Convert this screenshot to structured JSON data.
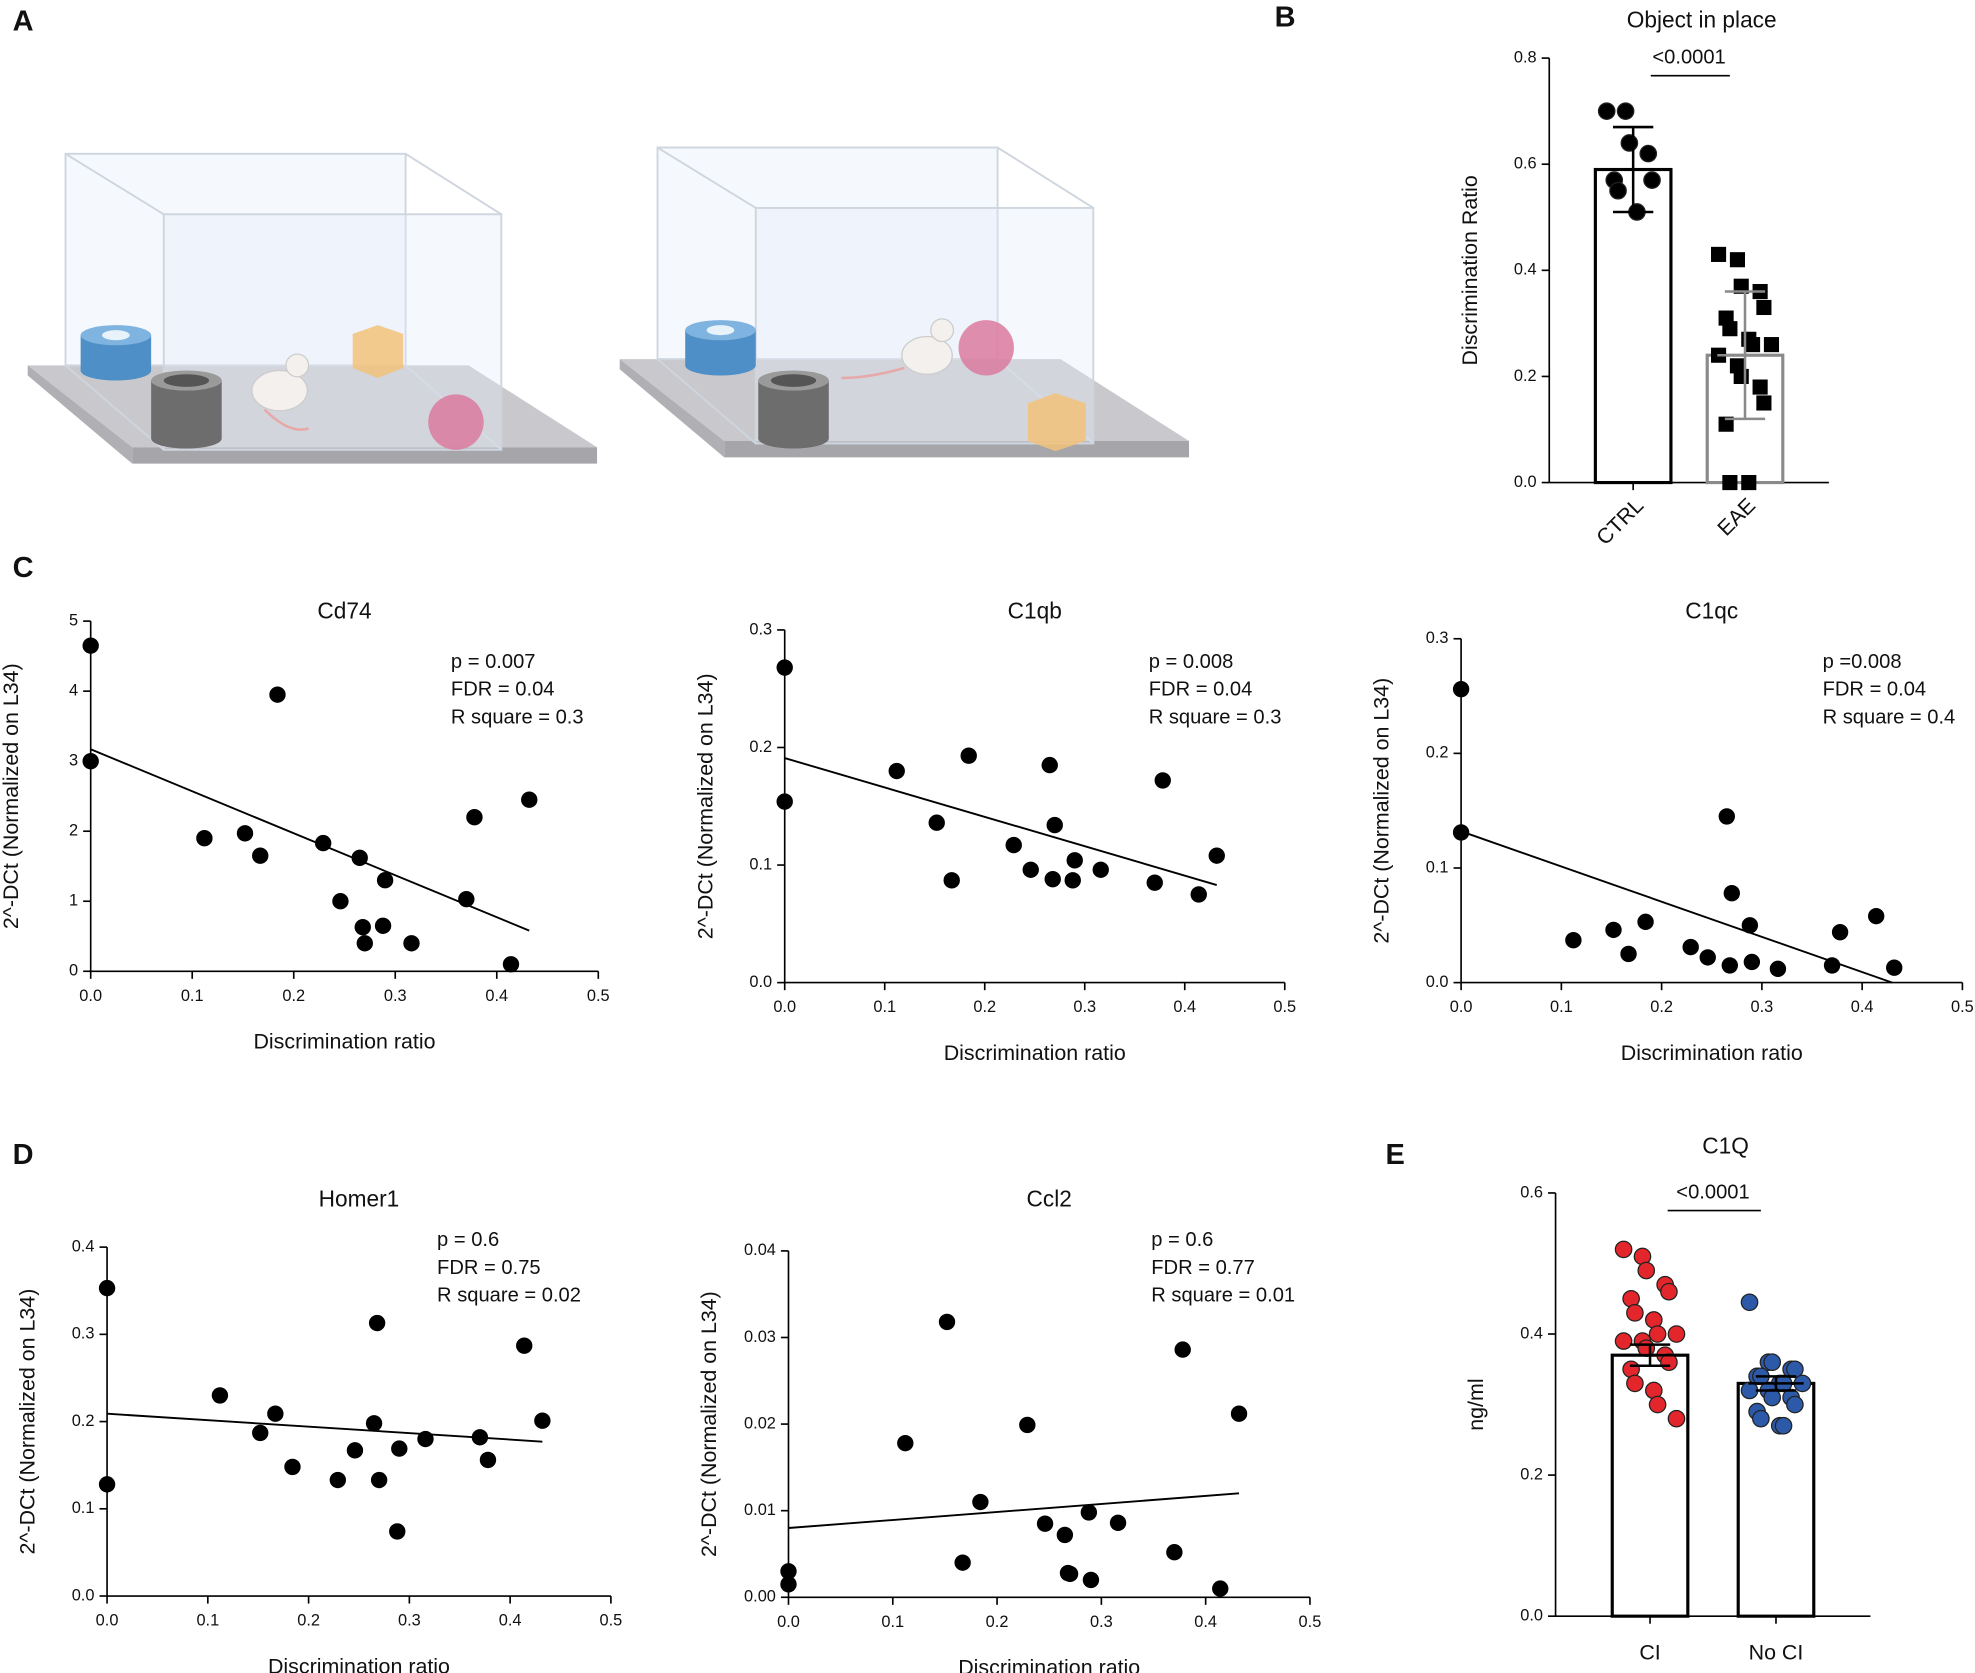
{
  "panel_labels": [
    "A",
    "B",
    "C",
    "D",
    "E"
  ],
  "chart_data": [
    {
      "type": "bar",
      "title": "Object in place",
      "y_label": "Discrimination Ratio",
      "categories": [
        "CTRL",
        "EAE"
      ],
      "values": [
        0.59,
        0.24
      ],
      "errors": [
        0.08,
        0.12
      ],
      "points": [
        [
          0.7,
          0.7,
          0.64,
          0.62,
          0.57,
          0.57,
          0.55,
          0.51
        ],
        [
          0.43,
          0.42,
          0.37,
          0.36,
          0.33,
          0.31,
          0.29,
          0.27,
          0.26,
          0.26,
          0.24,
          0.22,
          0.2,
          0.18,
          0.15,
          0.11,
          0.0,
          0.0
        ]
      ],
      "markers": [
        "circle",
        "square"
      ],
      "edge_colors": [
        "#000000",
        "#8a8a8a"
      ],
      "point_colors": [
        "#000000",
        "#000000"
      ],
      "annotation": "<0.0001",
      "ylim": [
        0,
        0.8
      ],
      "yticks": [
        {
          "value": 0,
          "label": "0.0"
        },
        0.2,
        0.4,
        0.6,
        0.8
      ]
    },
    {
      "type": "scatter",
      "title": "Cd74",
      "x_label": "Discrimination ratio",
      "y_label": "2^-DCt (Normalized on L34)",
      "annotations": [
        "p = 0.007",
        "FDR = 0.04",
        "R square = 0.3"
      ],
      "color": "#000000",
      "x": [
        0,
        0,
        0.112,
        0.152,
        0.167,
        0.184,
        0.229,
        0.246,
        0.265,
        0.268,
        0.27,
        0.288,
        0.29,
        0.316,
        0.37,
        0.378,
        0.414,
        0.432
      ],
      "values": [
        4.65,
        3.0,
        1.9,
        1.97,
        1.65,
        3.95,
        1.83,
        1.0,
        1.62,
        0.63,
        0.4,
        0.65,
        1.3,
        0.4,
        1.03,
        2.2,
        0.1,
        2.45
      ],
      "fit": {
        "x": [
          0,
          0.432
        ],
        "values": [
          3.17,
          0.58
        ]
      },
      "xlim": [
        0,
        0.5
      ],
      "xticks": [
        {
          "value": 0,
          "label": "0.0"
        },
        0.1,
        0.2,
        0.3,
        0.4,
        0.5
      ],
      "ylim": [
        0,
        5
      ],
      "yticks": [
        0,
        1,
        2,
        3,
        4,
        5
      ]
    },
    {
      "type": "scatter",
      "title": "C1qb",
      "x_label": "Discrimination ratio",
      "y_label": "2^-DCt (Normalized on L34)",
      "annotations": [
        "p = 0.008",
        "FDR = 0.04",
        "R square = 0.3"
      ],
      "color": "#000000",
      "x": [
        0,
        0,
        0.112,
        0.152,
        0.167,
        0.184,
        0.229,
        0.246,
        0.265,
        0.268,
        0.27,
        0.288,
        0.29,
        0.316,
        0.37,
        0.378,
        0.414,
        0.432
      ],
      "values": [
        0.268,
        0.154,
        0.18,
        0.136,
        0.087,
        0.193,
        0.117,
        0.096,
        0.185,
        0.088,
        0.134,
        0.087,
        0.104,
        0.096,
        0.085,
        0.172,
        0.075,
        0.108
      ],
      "fit": {
        "x": [
          0,
          0.432
        ],
        "values": [
          0.191,
          0.083
        ]
      },
      "xlim": [
        0,
        0.5
      ],
      "xticks": [
        {
          "value": 0,
          "label": "0.0"
        },
        0.1,
        0.2,
        0.3,
        0.4,
        0.5
      ],
      "ylim": [
        0,
        0.3
      ],
      "yticks": [
        {
          "value": 0,
          "label": "0.0"
        },
        0.1,
        0.2,
        0.3
      ]
    },
    {
      "type": "scatter",
      "title": "C1qc",
      "x_label": "Discrimination ratio",
      "y_label": "2^-DCt (Normalized on L34)",
      "annotations": [
        "p =0.008",
        "FDR = 0.04",
        "R square = 0.4"
      ],
      "color": "#000000",
      "x": [
        0,
        0,
        0.112,
        0.152,
        0.167,
        0.184,
        0.229,
        0.246,
        0.265,
        0.268,
        0.27,
        0.288,
        0.29,
        0.316,
        0.37,
        0.378,
        0.414,
        0.432
      ],
      "values": [
        0.256,
        0.131,
        0.037,
        0.046,
        0.025,
        0.053,
        0.031,
        0.022,
        0.145,
        0.015,
        0.078,
        0.05,
        0.018,
        0.012,
        0.015,
        0.044,
        0.058,
        0.013
      ],
      "fit": {
        "x": [
          0,
          0.43
        ],
        "values": [
          0.132,
          0.0
        ]
      },
      "xlim": [
        0,
        0.5
      ],
      "xticks": [
        {
          "value": 0,
          "label": "0.0"
        },
        0.1,
        0.2,
        0.3,
        0.4,
        0.5
      ],
      "ylim": [
        0,
        0.3
      ],
      "yticks": [
        {
          "value": 0,
          "label": "0.0"
        },
        0.1,
        0.2,
        0.3
      ]
    },
    {
      "type": "scatter",
      "title": "Homer1",
      "x_label": "Discrimination ratio",
      "y_label": "2^-DCt (Normalized on L34)",
      "annotations": [
        "p = 0.6",
        "FDR = 0.75",
        "R square = 0.02"
      ],
      "color": "#000000",
      "x": [
        0,
        0,
        0.112,
        0.152,
        0.167,
        0.184,
        0.229,
        0.246,
        0.265,
        0.268,
        0.27,
        0.288,
        0.29,
        0.316,
        0.37,
        0.378,
        0.414,
        0.432
      ],
      "values": [
        0.353,
        0.128,
        0.23,
        0.187,
        0.209,
        0.148,
        0.133,
        0.167,
        0.198,
        0.313,
        0.133,
        0.074,
        0.169,
        0.18,
        0.182,
        0.156,
        0.287,
        0.201
      ],
      "fit": {
        "x": [
          0,
          0.432
        ],
        "values": [
          0.209,
          0.177
        ]
      },
      "xlim": [
        0,
        0.5
      ],
      "xticks": [
        {
          "value": 0,
          "label": "0.0"
        },
        0.1,
        0.2,
        0.3,
        0.4,
        0.5
      ],
      "ylim": [
        0,
        0.4
      ],
      "yticks": [
        {
          "value": 0,
          "label": "0.0"
        },
        0.1,
        0.2,
        0.3,
        0.4
      ]
    },
    {
      "type": "scatter",
      "title": "Ccl2",
      "x_label": "Discrimination ratio",
      "y_label": "2^-DCt (Normalized on L34)",
      "annotations": [
        "p = 0.6",
        "FDR = 0.77",
        "R square = 0.01"
      ],
      "color": "#000000",
      "x": [
        0,
        0,
        0.112,
        0.152,
        0.167,
        0.184,
        0.229,
        0.246,
        0.265,
        0.268,
        0.27,
        0.288,
        0.29,
        0.316,
        0.37,
        0.378,
        0.414,
        0.432
      ],
      "values": [
        0.003,
        0.0015,
        0.0178,
        0.0318,
        0.004,
        0.011,
        0.0199,
        0.0085,
        0.0072,
        0.0028,
        0.0027,
        0.0098,
        0.002,
        0.0086,
        0.0052,
        0.0286,
        0.001,
        0.0212
      ],
      "fit": {
        "x": [
          0,
          0.432
        ],
        "values": [
          0.008,
          0.012
        ]
      },
      "xlim": [
        0,
        0.5
      ],
      "xticks": [
        {
          "value": 0,
          "label": "0.0"
        },
        0.1,
        0.2,
        0.3,
        0.4,
        0.5
      ],
      "ylim": [
        0,
        0.04
      ],
      "yticks": [
        {
          "value": 0,
          "label": "0.00"
        },
        0.01,
        0.02,
        0.03,
        0.04
      ]
    },
    {
      "type": "bar",
      "title": "C1Q",
      "y_label": "ng/ml",
      "categories": [
        "CI",
        "No CI"
      ],
      "values": [
        0.37,
        0.33
      ],
      "errors": [
        0.015,
        0.01
      ],
      "points": [
        [
          0.52,
          0.51,
          0.49,
          0.47,
          0.46,
          0.45,
          0.43,
          0.42,
          0.4,
          0.4,
          0.39,
          0.39,
          0.38,
          0.37,
          0.36,
          0.35,
          0.33,
          0.32,
          0.3,
          0.28
        ],
        [
          0.445,
          0.36,
          0.36,
          0.35,
          0.35,
          0.34,
          0.34,
          0.33,
          0.33,
          0.33,
          0.32,
          0.32,
          0.31,
          0.31,
          0.3,
          0.29,
          0.28,
          0.27,
          0.27
        ]
      ],
      "markers": [
        "circle",
        "circle"
      ],
      "edge_colors": [
        "#000000",
        "#000000"
      ],
      "point_colors": [
        "#e3262b",
        "#2d5aa8"
      ],
      "annotation": "<0.0001",
      "ylim": [
        0,
        0.6
      ],
      "yticks": [
        {
          "value": 0,
          "label": "0.0"
        },
        0.2,
        0.4,
        0.6
      ]
    }
  ]
}
